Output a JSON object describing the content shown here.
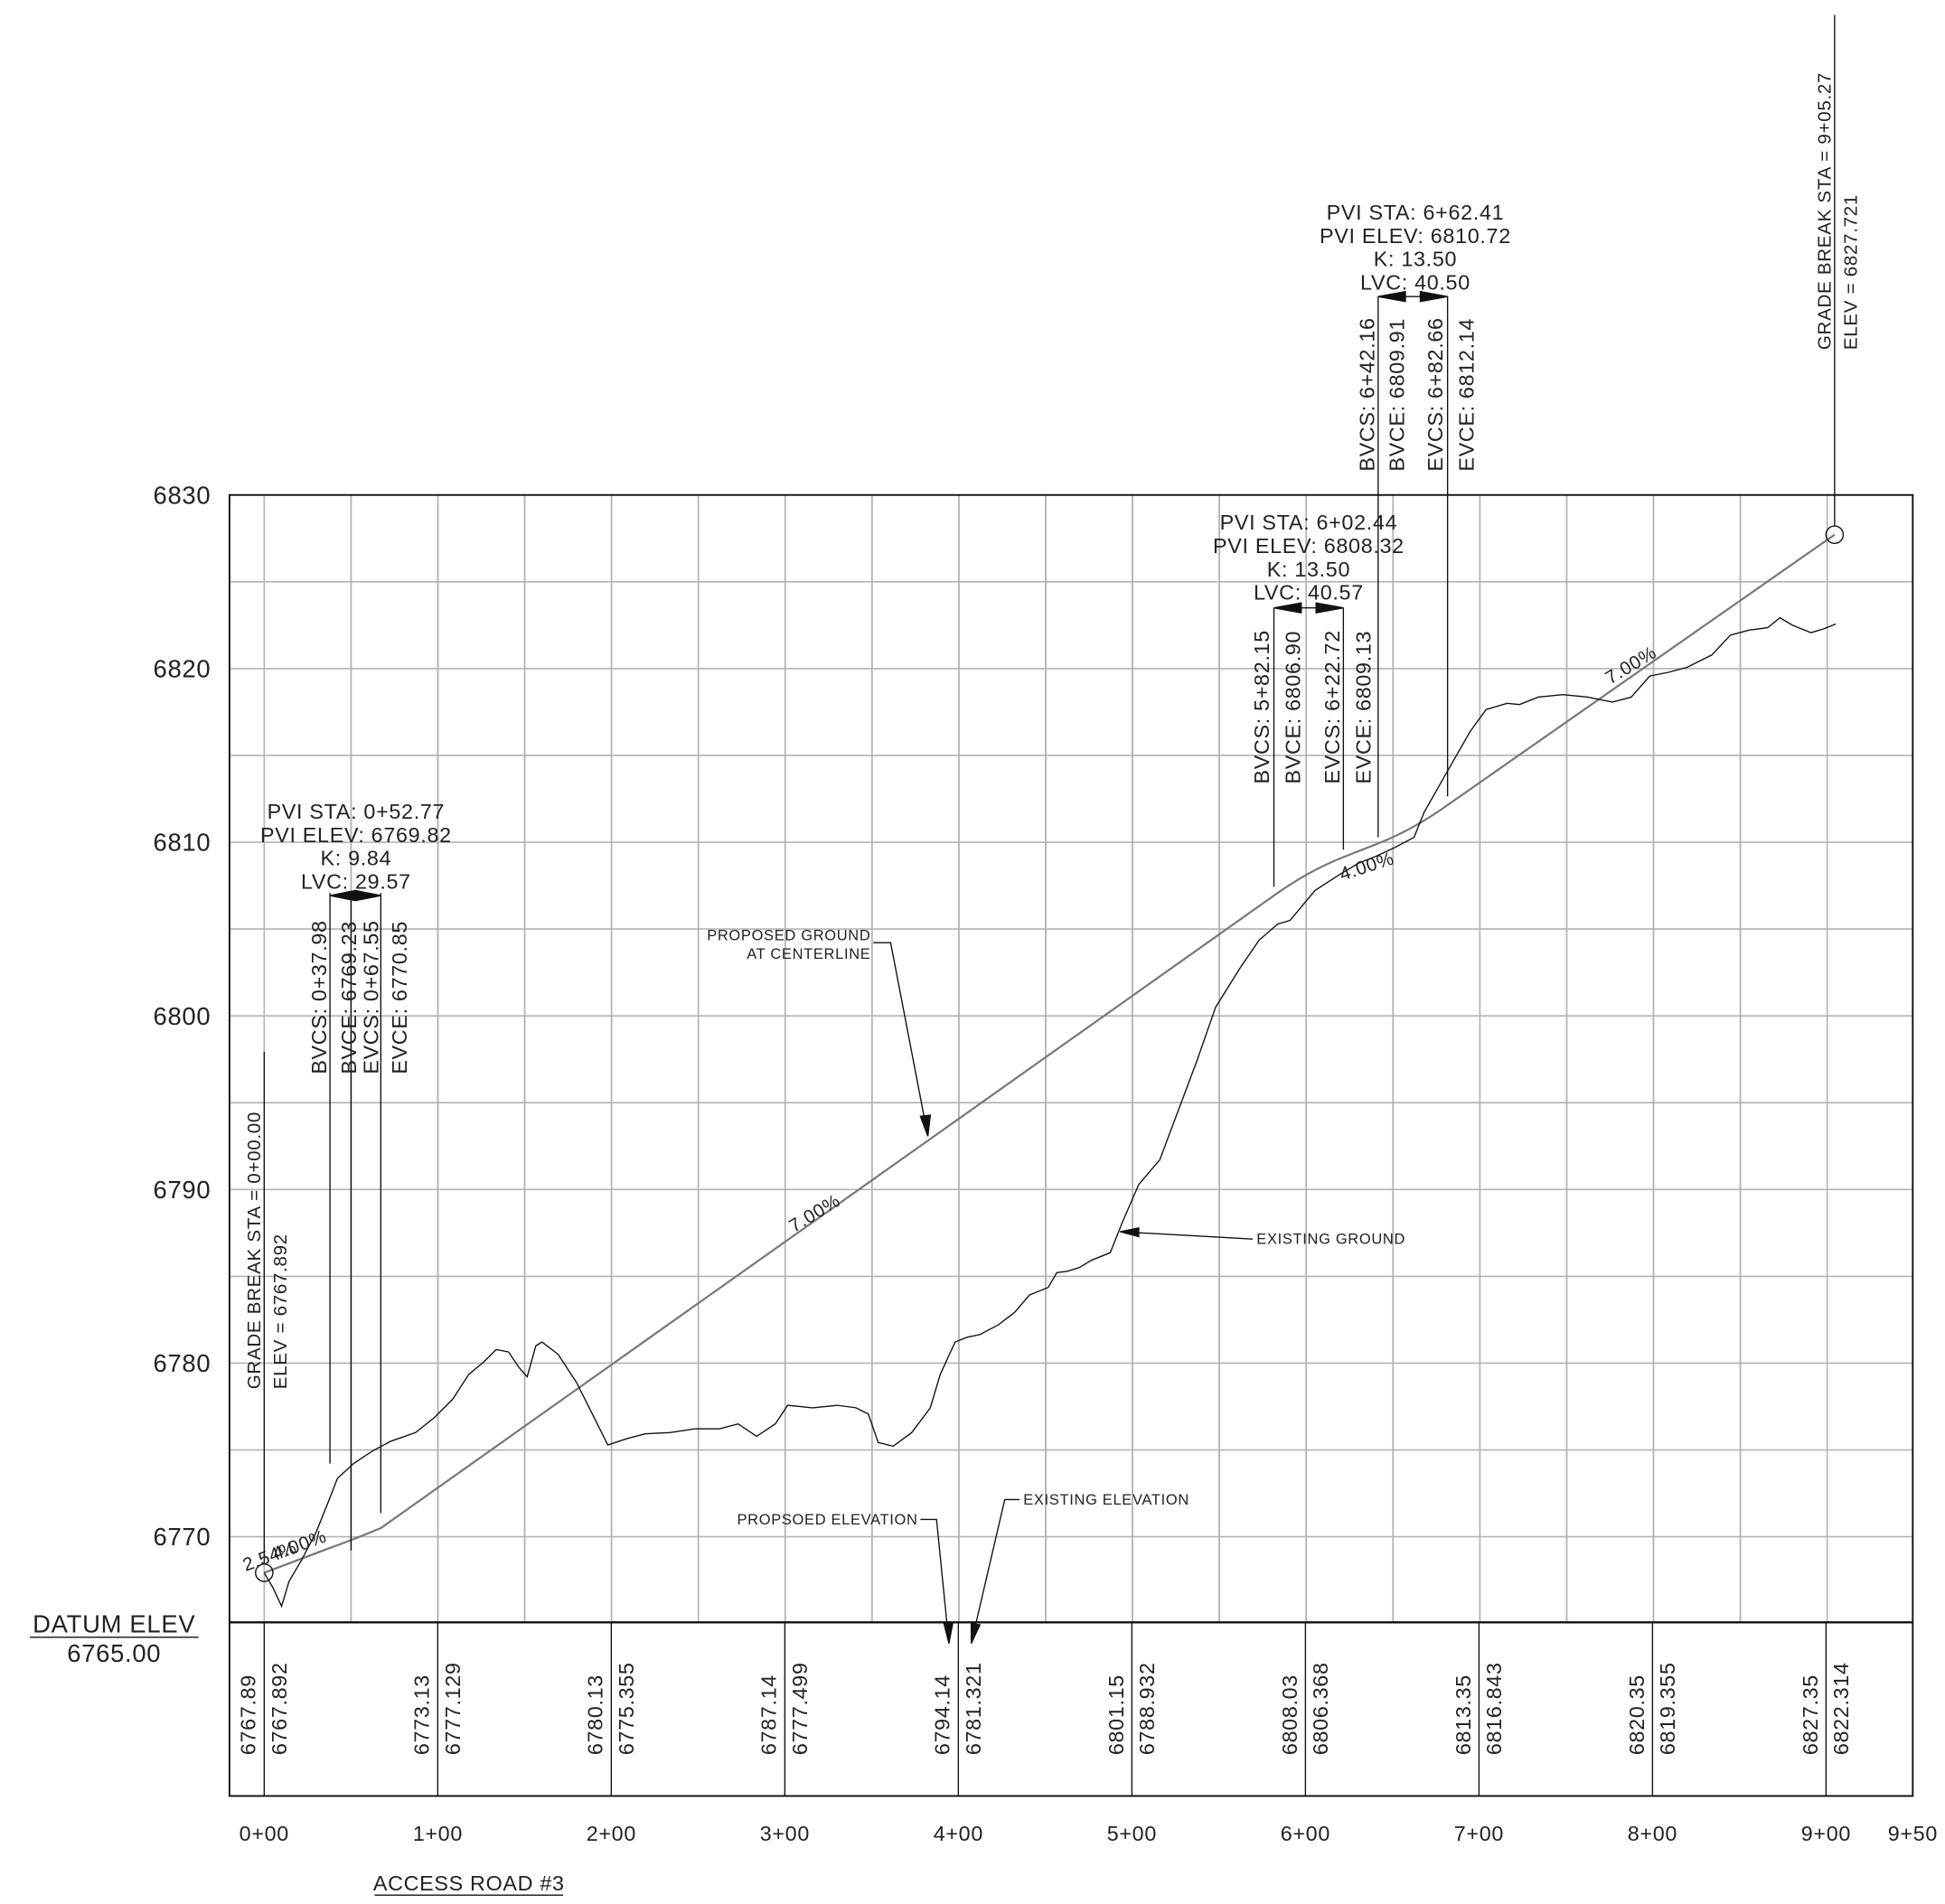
{
  "title": "ACCESS ROAD #3",
  "datum": {
    "label": "DATUM ELEV",
    "value": "6765.00"
  },
  "elevation_labels": [
    "6830",
    "6820",
    "6810",
    "6800",
    "6790",
    "6780",
    "6770"
  ],
  "station_labels": [
    "0+00",
    "1+00",
    "2+00",
    "3+00",
    "4+00",
    "5+00",
    "6+00",
    "7+00",
    "8+00",
    "9+00",
    "9+50"
  ],
  "bottom_elevations": [
    [
      "6767.89",
      "6767.892"
    ],
    [
      "6773.13",
      "6777.129"
    ],
    [
      "6780.13",
      "6775.355"
    ],
    [
      "6787.14",
      "6777.499"
    ],
    [
      "6794.14",
      "6781.321"
    ],
    [
      "6801.15",
      "6788.932"
    ],
    [
      "6808.03",
      "6806.368"
    ],
    [
      "6813.35",
      "6816.843"
    ],
    [
      "6820.35",
      "6819.355"
    ],
    [
      "6827.35",
      "6822.314"
    ]
  ],
  "vertical_curves": [
    {
      "pvi_sta": "PVI STA:  0+52.77",
      "pvi_elev": "PVI ELEV:  6769.82",
      "k": "K:  9.84",
      "lvc": "LVC:  29.57",
      "bvcs": "BVCS:  0+37.98",
      "bvce": "BVCE:  6769.23",
      "evcs": "EVCS:  0+67.55",
      "evce": "EVCE:  6770.85"
    },
    {
      "pvi_sta": "PVI STA:  6+02.44",
      "pvi_elev": "PVI ELEV:  6808.32",
      "k": "K:  13.50",
      "lvc": "LVC:  40.57",
      "bvcs": "BVCS:  5+82.15",
      "bvce": "BVCE:  6806.90",
      "evcs": "EVCS:  6+22.72",
      "evce": "EVCE:  6809.13"
    },
    {
      "pvi_sta": "PVI STA:  6+62.41",
      "pvi_elev": "PVI ELEV:  6810.72",
      "k": "K:  13.50",
      "lvc": "LVC:  40.50",
      "bvcs": "BVCS:  6+42.16",
      "bvce": "BVCE:  6809.91",
      "evcs": "EVCS:  6+82.66",
      "evce": "EVCE:  6812.14"
    }
  ],
  "grade_breaks": [
    {
      "station": "GRADE BREAK STA  =  0+00.00",
      "elev": "ELEV  =  6767.892"
    },
    {
      "station": "GRADE BREAK STA  =  9+05.27",
      "elev": "ELEV  =  6827.721"
    }
  ],
  "grades": [
    "2.54%",
    "4.00%",
    "7.00%",
    "4.00%",
    "7.00%"
  ],
  "callouts": {
    "proposed_ground": [
      "PROPOSED GROUND",
      "AT CENTERLINE"
    ],
    "existing_ground": "EXISTING GROUND",
    "proposed_elevation": "PROPSOED ELEVATION",
    "existing_elevation": "EXISTING ELEVATION"
  }
}
